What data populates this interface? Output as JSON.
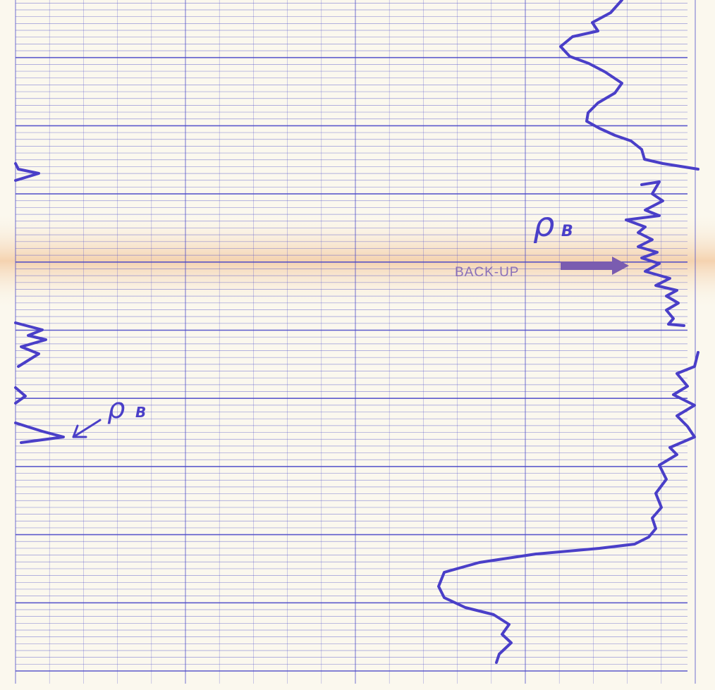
{
  "labels": {
    "backup": "BACK-UP",
    "rho_right": {
      "symbol": "ρ",
      "subscript": "B"
    },
    "rho_left": {
      "symbol": "ρ",
      "subscript": "B"
    }
  }
}
